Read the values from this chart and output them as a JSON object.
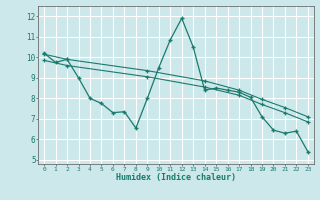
{
  "xlabel": "Humidex (Indice chaleur)",
  "bg_color": "#cce8ea",
  "grid_color": "#ffffff",
  "line_color": "#1a7a6e",
  "xlim": [
    -0.5,
    23.5
  ],
  "ylim": [
    4.8,
    12.5
  ],
  "yticks": [
    5,
    6,
    7,
    8,
    9,
    10,
    11,
    12
  ],
  "xticks": [
    0,
    1,
    2,
    3,
    4,
    5,
    6,
    7,
    8,
    9,
    10,
    11,
    12,
    13,
    14,
    15,
    16,
    17,
    18,
    19,
    20,
    21,
    22,
    23
  ],
  "series1_x": [
    0,
    1,
    2,
    3,
    4,
    5,
    6,
    7,
    8,
    9,
    10,
    11,
    12,
    13,
    14,
    15,
    16,
    17,
    18,
    19,
    20,
    21,
    22,
    23
  ],
  "series1_y": [
    10.2,
    9.75,
    9.9,
    9.0,
    8.0,
    7.75,
    7.3,
    7.35,
    6.55,
    8.0,
    9.5,
    10.85,
    11.9,
    10.5,
    8.4,
    8.5,
    8.4,
    8.3,
    8.05,
    7.1,
    6.45,
    6.3,
    6.4,
    5.4
  ],
  "series2_x": [
    0,
    2,
    9,
    14,
    17,
    19,
    21,
    23
  ],
  "series2_y": [
    10.15,
    9.9,
    9.35,
    8.85,
    8.4,
    7.95,
    7.55,
    7.1
  ],
  "series3_x": [
    0,
    2,
    9,
    14,
    17,
    19,
    21,
    23
  ],
  "series3_y": [
    9.85,
    9.6,
    9.05,
    8.55,
    8.15,
    7.7,
    7.3,
    6.85
  ]
}
